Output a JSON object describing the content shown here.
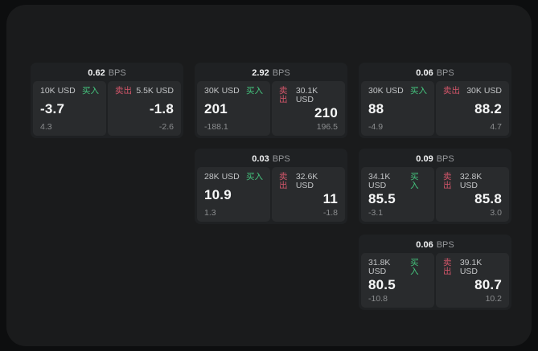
{
  "colors": {
    "buy": "#45c57e",
    "sell": "#d4566a",
    "page_background": "#0d0e0f",
    "panel_background": "#1a1b1c",
    "card_background": "#1f2123",
    "subpanel_background": "#292b2d"
  },
  "labels": {
    "buy": "买入",
    "sell": "卖出",
    "bps_unit": "BPS"
  },
  "cards": [
    {
      "row": 1,
      "col": 1,
      "bps": "0.62",
      "buy": {
        "notional": "10K USD",
        "value": "-3.7",
        "delta": "4.3"
      },
      "sell": {
        "notional": "5.5K USD",
        "value": "-1.8",
        "delta": "-2.6"
      }
    },
    {
      "row": 1,
      "col": 2,
      "bps": "2.92",
      "buy": {
        "notional": "30K USD",
        "value": "201",
        "delta": "-188.1"
      },
      "sell": {
        "notional": "30.1K USD",
        "value": "210",
        "delta": "196.5"
      }
    },
    {
      "row": 1,
      "col": 3,
      "bps": "0.06",
      "buy": {
        "notional": "30K USD",
        "value": "88",
        "delta": "-4.9"
      },
      "sell": {
        "notional": "30K USD",
        "value": "88.2",
        "delta": "4.7"
      }
    },
    {
      "row": 2,
      "col": 2,
      "bps": "0.03",
      "buy": {
        "notional": "28K USD",
        "value": "10.9",
        "delta": "1.3"
      },
      "sell": {
        "notional": "32.6K USD",
        "value": "11",
        "delta": "-1.8"
      }
    },
    {
      "row": 2,
      "col": 3,
      "bps": "0.09",
      "buy": {
        "notional": "34.1K USD",
        "value": "85.5",
        "delta": "-3.1"
      },
      "sell": {
        "notional": "32.8K USD",
        "value": "85.8",
        "delta": "3.0"
      }
    },
    {
      "row": 3,
      "col": 3,
      "bps": "0.06",
      "buy": {
        "notional": "31.8K USD",
        "value": "80.5",
        "delta": "-10.8"
      },
      "sell": {
        "notional": "39.1K USD",
        "value": "80.7",
        "delta": "10.2"
      }
    }
  ]
}
